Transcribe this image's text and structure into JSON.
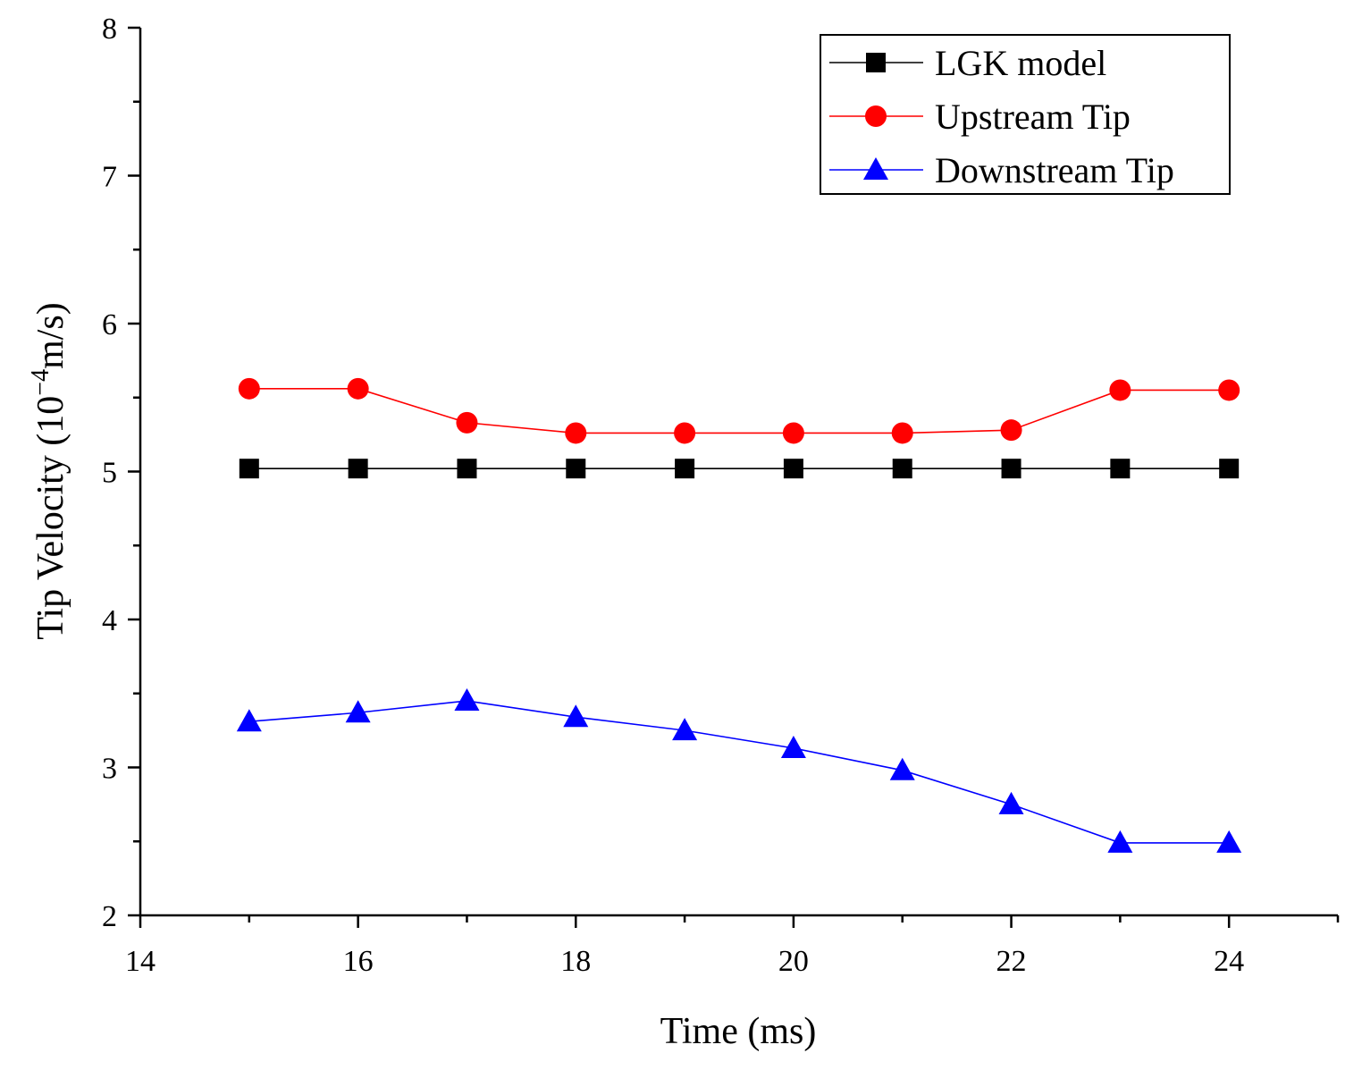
{
  "chart_data": {
    "type": "line",
    "title": "",
    "xlabel": "Time (ms)",
    "ylabel": {
      "prefix": "Tip Velocity (10",
      "superscript": "−4",
      "suffix": "m/s)"
    },
    "xlim": [
      14,
      25
    ],
    "ylim": [
      2,
      8
    ],
    "x_ticks": [
      14,
      16,
      18,
      20,
      22,
      24
    ],
    "y_ticks": [
      2,
      3,
      4,
      5,
      6,
      7,
      8
    ],
    "x_minor_ticks": [
      15,
      17,
      19,
      21,
      23
    ],
    "y_minor_ticks": [
      2.5,
      3.5,
      4.5,
      5.5,
      6.5,
      7.5
    ],
    "grid": false,
    "legend_position": "top-right",
    "x": [
      15,
      16,
      17,
      18,
      19,
      20,
      21,
      22,
      23,
      24
    ],
    "series": [
      {
        "name": "LGK model",
        "color": "#000000",
        "marker": "square",
        "values": [
          5.02,
          5.02,
          5.02,
          5.02,
          5.02,
          5.02,
          5.02,
          5.02,
          5.02,
          5.02
        ]
      },
      {
        "name": "Upstream Tip",
        "color": "#ff0000",
        "marker": "circle",
        "values": [
          5.56,
          5.56,
          5.33,
          5.26,
          5.26,
          5.26,
          5.26,
          5.28,
          5.55,
          5.55
        ]
      },
      {
        "name": "Downstream Tip",
        "color": "#0000ff",
        "marker": "triangle",
        "values": [
          3.31,
          3.37,
          3.45,
          3.34,
          3.25,
          3.13,
          2.98,
          2.75,
          2.49,
          2.49
        ]
      }
    ]
  }
}
